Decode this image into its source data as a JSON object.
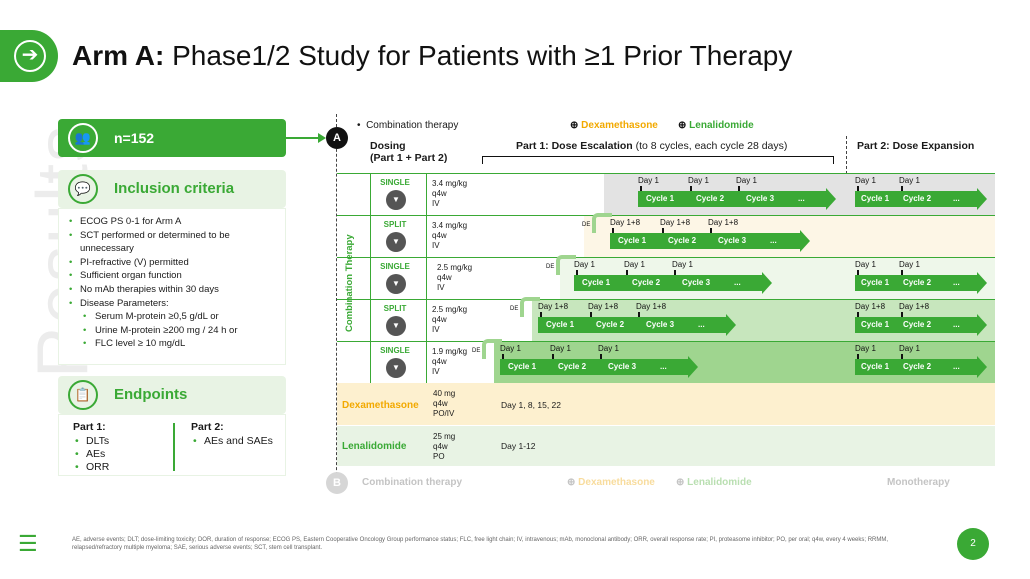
{
  "header": {
    "title_bold": "Arm A:",
    "title_rest": " Phase1/2 Study for Patients with ≥1 Prior Therapy",
    "side_watermark": "Results"
  },
  "patients": {
    "n": "n=152"
  },
  "inclusion": {
    "title": "Inclusion criteria",
    "items": [
      "ECOG PS 0-1 for Arm A",
      "SCT performed or determined to be unnecessary",
      "PI-refractive (V) permitted",
      "Sufficient organ function",
      "No mAb therapies within 30 days",
      "Disease Parameters:"
    ],
    "subitems": [
      "Serum M-protein ≥0,5 g/dL or",
      "Urine M-protein ≥200 mg / 24 h or",
      "FLC level ≥ 10 mg/dL"
    ]
  },
  "endpoints": {
    "title": "Endpoints",
    "part1_title": "Part 1:",
    "part1_items": [
      "DLTs",
      "AEs",
      "ORR"
    ],
    "part2_title": "Part 2:",
    "part2_items": [
      "AEs and SAEs"
    ]
  },
  "diagram": {
    "marker_a": "A",
    "marker_b": "B",
    "combination_label": "Combination therapy",
    "dexa_plus": "Dexamethasone",
    "lena_plus": "Lenalidomide",
    "dosing_title": "Dosing",
    "dosing_sub": "(Part 1 + Part 2)",
    "part1_title": "Part 1: Dose Escalation",
    "part1_note": "(to 8 cycles, each cycle 28 days)",
    "part2_title": "Part 2: Dose Expansion",
    "vertical_label": "Combination Therapy",
    "de": "DE",
    "rows": [
      {
        "mode": "SINGLE",
        "dose": "3.4 mg/kg",
        "freq": "q4w",
        "route": "IV",
        "day": "Day 1",
        "cycles": [
          "Cycle 1",
          "Cycle 2",
          "Cycle 3",
          "..."
        ],
        "p2day": "Day 1",
        "p2cycles": [
          "Cycle 1",
          "Cycle 2",
          "..."
        ]
      },
      {
        "mode": "SPLIT",
        "dose": "3.4 mg/kg",
        "freq": "q4w",
        "route": "IV",
        "day": "Day 1+8",
        "cycles": [
          "Cycle 1",
          "Cycle 2",
          "Cycle 3",
          "..."
        ]
      },
      {
        "mode": "SINGLE",
        "dose": "2.5 mg/kg",
        "freq": "q4w",
        "route": "IV",
        "day": "Day 1",
        "cycles": [
          "Cycle 1",
          "Cycle 2",
          "Cycle 3",
          "..."
        ],
        "p2day": "Day 1",
        "p2cycles": [
          "Cycle 1",
          "Cycle 2",
          "..."
        ]
      },
      {
        "mode": "SPLIT",
        "dose": "2.5 mg/kg",
        "freq": "q4w",
        "route": "IV",
        "day": "Day 1+8",
        "cycles": [
          "Cycle 1",
          "Cycle 2",
          "Cycle 3",
          "..."
        ],
        "p2day": "Day 1+8",
        "p2cycles": [
          "Cycle 1",
          "Cycle 2",
          "..."
        ]
      },
      {
        "mode": "SINGLE",
        "dose": "1.9 mg/kg",
        "freq": "q4w",
        "route": "IV",
        "day": "Day 1",
        "cycles": [
          "Cycle 1",
          "Cycle 2",
          "Cycle 3",
          "..."
        ],
        "p2day": "Day 1",
        "p2cycles": [
          "Cycle 1",
          "Cycle 2",
          "..."
        ]
      }
    ],
    "dexa": {
      "name": "Dexamethasone",
      "dose": "40 mg",
      "freq": "q4w",
      "route": "PO/IV",
      "days": "Day 1, 8, 15, 22"
    },
    "lena": {
      "name": "Lenalidomide",
      "dose": "25 mg",
      "freq": "q4w",
      "route": "PO",
      "days": "Day 1-12"
    },
    "arm_b": {
      "combination": "Combination therapy",
      "dexa": "Dexamethasone",
      "lena": "Lenalidomide",
      "mono": "Monotherapy"
    }
  },
  "footer": {
    "abbrev": "AE, adverse events; DLT; dose-limiting toxicity; DOR, duration of response; ECOG PS, Eastern Cooperative Oncology Group performance status; FLC, free light chain; IV, intravenous; mAb, monoclonal antibody; ORR, overall response rate; PI, proteasome inhibitor; PO, per oral; q4w, every 4 weeks; RRMM, relapsed/refractory multiple myeloma; SAE, serious adverse events; SCT, stem cell transplant.",
    "page": "2"
  },
  "colors": {
    "green": "#3aa935",
    "orange": "#f2a900",
    "light_green": "#e8f3e4"
  }
}
